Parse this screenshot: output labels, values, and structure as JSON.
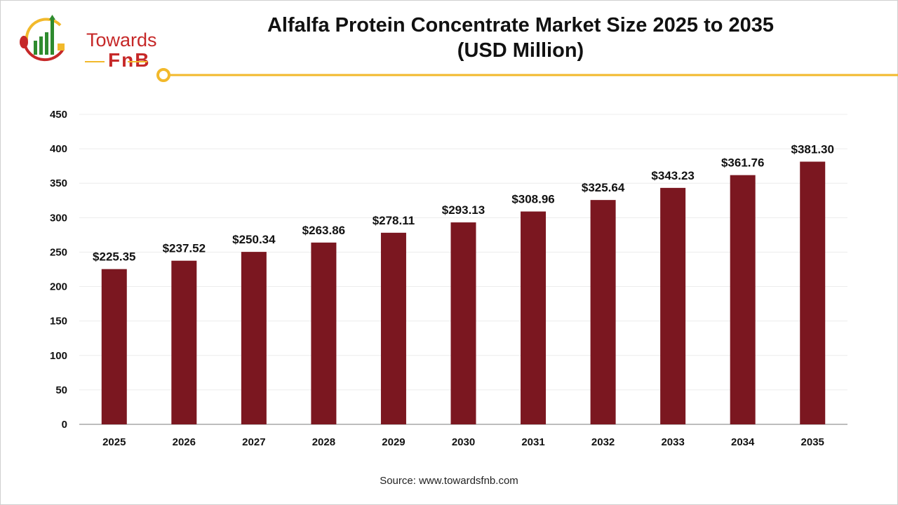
{
  "logo": {
    "line1": "Towards",
    "line2": "FnB"
  },
  "chart_data": {
    "type": "bar",
    "title": "Alfalfa Protein Concentrate Market Size 2025 to 2035",
    "subtitle": "(USD Million)",
    "categories": [
      "2025",
      "2026",
      "2027",
      "2028",
      "2029",
      "2030",
      "2031",
      "2032",
      "2033",
      "2034",
      "2035"
    ],
    "values": [
      225.35,
      237.52,
      250.34,
      263.86,
      278.11,
      293.13,
      308.96,
      325.64,
      343.23,
      361.76,
      381.3
    ],
    "data_labels": [
      "$225.35",
      "$237.52",
      "$250.34",
      "$263.86",
      "$278.11",
      "$293.13",
      "$308.96",
      "$325.64",
      "$343.23",
      "$361.76",
      "$381.30"
    ],
    "yticks": [
      0,
      50,
      100,
      150,
      200,
      250,
      300,
      350,
      400,
      450
    ],
    "ylim": [
      0,
      450
    ],
    "xlabel": "",
    "ylabel": "",
    "grid": true,
    "bar_color": "#7b1720",
    "accent_color": "#f2b92b"
  },
  "source": "Source: www.towardsfnb.com"
}
